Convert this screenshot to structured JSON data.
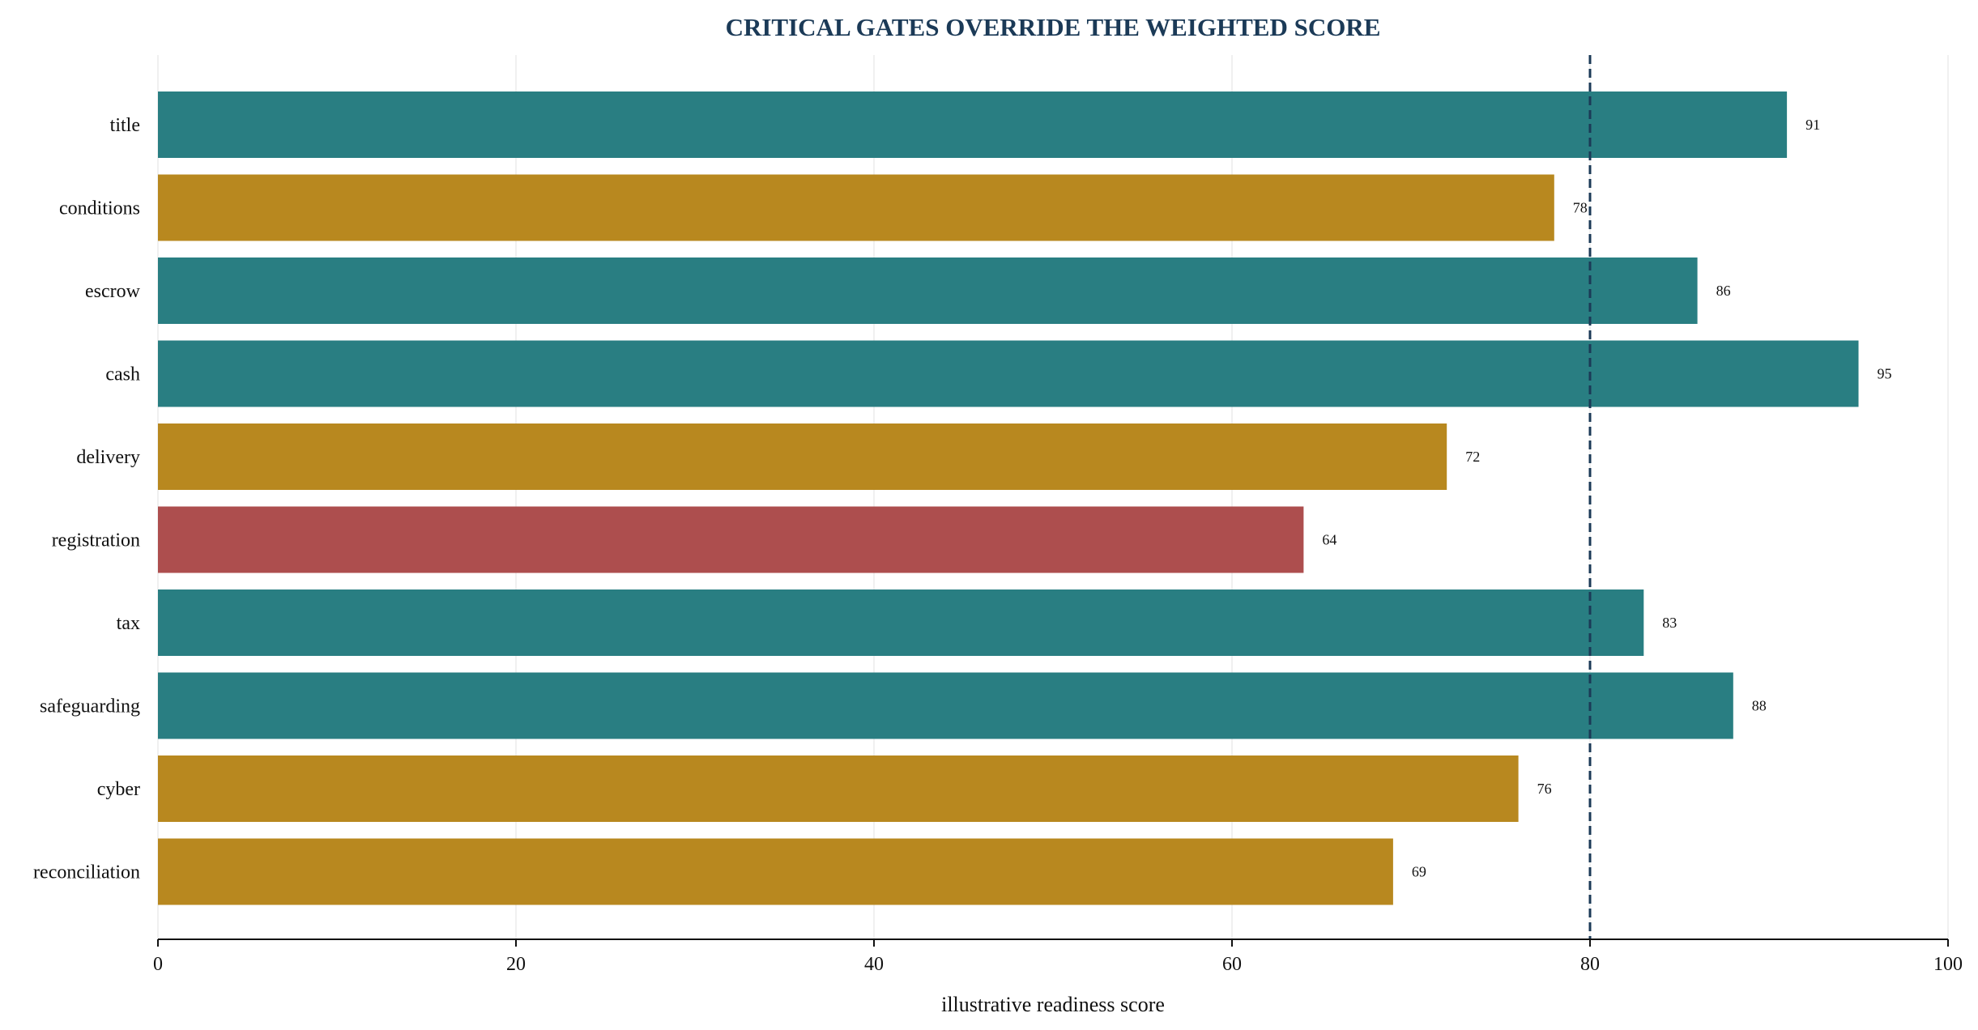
{
  "chart_data": {
    "type": "bar",
    "orientation": "horizontal",
    "title": "CRITICAL GATES OVERRIDE THE WEIGHTED SCORE",
    "xlabel": "illustrative readiness score",
    "ylabel": "",
    "categories": [
      "title",
      "conditions",
      "escrow",
      "cash",
      "delivery",
      "registration",
      "tax",
      "safeguarding",
      "cyber",
      "reconciliation"
    ],
    "values": [
      91,
      78,
      86,
      95,
      72,
      64,
      83,
      88,
      76,
      69
    ],
    "value_labels": [
      "91",
      "78",
      "86",
      "95",
      "72",
      "64",
      "83",
      "88",
      "76",
      "69"
    ],
    "bar_colors": [
      "#297e82",
      "#b8881f",
      "#297e82",
      "#297e82",
      "#b8881f",
      "#ad4e4e",
      "#297e82",
      "#297e82",
      "#b8881f",
      "#b8881f"
    ],
    "xlim": [
      0,
      100
    ],
    "xticks": [
      0,
      20,
      40,
      60,
      80,
      100
    ],
    "xtick_labels": [
      "0",
      "20",
      "40",
      "60",
      "80",
      "100"
    ],
    "threshold": 80,
    "threshold_color": "#1b3a57",
    "grid": "vertical-light",
    "legend": "none"
  }
}
